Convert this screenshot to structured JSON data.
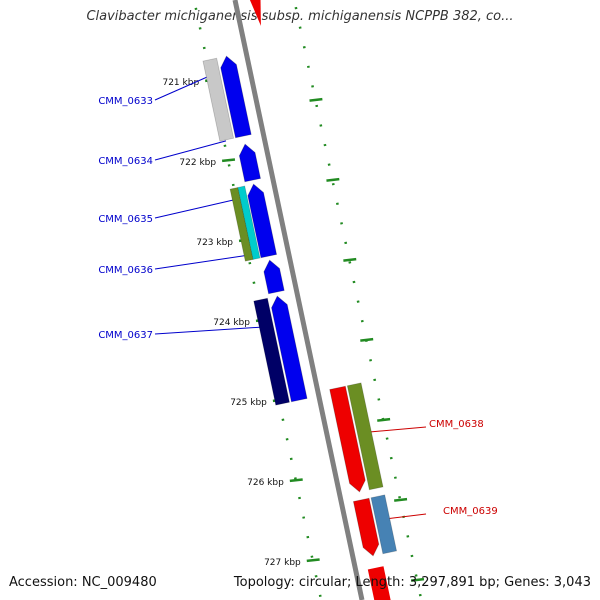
{
  "title": "Clavibacter michiganensis subsp. michiganensis NCPPB 382, co...",
  "footer": {
    "accession": "Accession: NC_009480",
    "summary": "Topology: circular; Length: 3,297,891 bp; Genes: 3,043"
  },
  "colors": {
    "forward_label": "#0000cc",
    "reverse_label": "#cc0000",
    "ticks": "#228b22",
    "backbone": "#808080"
  },
  "scale": {
    "ticks": [
      {
        "kbp": 721,
        "label": "721 kbp"
      },
      {
        "kbp": 722,
        "label": "722 kbp"
      },
      {
        "kbp": 723,
        "label": "723 kbp"
      },
      {
        "kbp": 724,
        "label": "724 kbp"
      },
      {
        "kbp": 725,
        "label": "725 kbp"
      },
      {
        "kbp": 726,
        "label": "726 kbp"
      },
      {
        "kbp": 727,
        "label": "727 kbp"
      }
    ]
  },
  "genes": [
    {
      "id": "CMM_0633",
      "strand": "forward",
      "start_kbp": 720.75,
      "end_kbp": 721.75,
      "color": "#0000ee"
    },
    {
      "id": "CMM_0634",
      "strand": "forward",
      "start_kbp": 721.85,
      "end_kbp": 722.3,
      "color": "#0000ee"
    },
    {
      "id": "CMM_0635",
      "strand": "forward",
      "start_kbp": 722.35,
      "end_kbp": 723.25,
      "color": "#0000ee"
    },
    {
      "id": "CMM_0636",
      "strand": "forward",
      "start_kbp": 723.3,
      "end_kbp": 723.7,
      "color": "#0000ee"
    },
    {
      "id": "CMM_0637",
      "strand": "forward",
      "start_kbp": 723.75,
      "end_kbp": 725.05,
      "color": "#0000ee"
    },
    {
      "id": "CMM_0638",
      "strand": "reverse",
      "start_kbp": 725.0,
      "end_kbp": 726.3,
      "color": "#ee0000"
    },
    {
      "id": "CMM_0639",
      "strand": "reverse",
      "start_kbp": 726.4,
      "end_kbp": 727.1,
      "color": "#ee0000"
    }
  ],
  "features": [
    {
      "name": "cog-grey",
      "strand": "forward",
      "start_kbp": 720.75,
      "end_kbp": 721.75,
      "color": "#c8c8c8"
    },
    {
      "name": "cog-olive-0635",
      "strand": "forward",
      "start_kbp": 722.35,
      "end_kbp": 723.25,
      "color": "#6b8e23"
    },
    {
      "name": "cog-cyan-0635",
      "strand": "forward",
      "start_kbp": 722.35,
      "end_kbp": 723.25,
      "color": "#00cccc"
    },
    {
      "name": "cog-navy-0637",
      "strand": "forward",
      "start_kbp": 723.75,
      "end_kbp": 725.05,
      "color": "#000066"
    },
    {
      "name": "cog-olive-0638",
      "strand": "reverse",
      "start_kbp": 725.0,
      "end_kbp": 726.3,
      "color": "#6b8e23"
    },
    {
      "name": "cog-steelblue-0639",
      "strand": "reverse",
      "start_kbp": 726.4,
      "end_kbp": 727.1,
      "color": "#4682b4"
    }
  ]
}
